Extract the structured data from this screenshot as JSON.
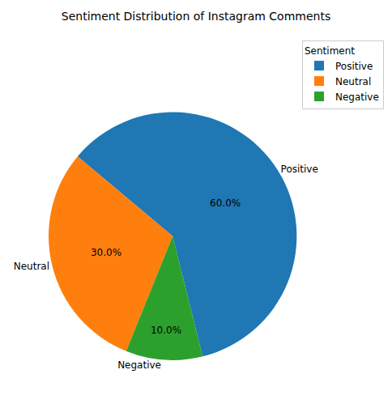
{
  "chart_data": {
    "type": "pie",
    "title": "Sentiment Distribution of Instagram Comments",
    "categories": [
      "Positive",
      "Neutral",
      "Negative"
    ],
    "values": [
      60,
      30,
      10
    ],
    "value_labels": [
      "60.0%",
      "30.0%",
      "10.0%"
    ],
    "colors": [
      "#1f77b4",
      "#ff7f0e",
      "#2ca02c"
    ],
    "data_labels": true,
    "legend": "upper right",
    "legend_title": "Sentiment"
  }
}
